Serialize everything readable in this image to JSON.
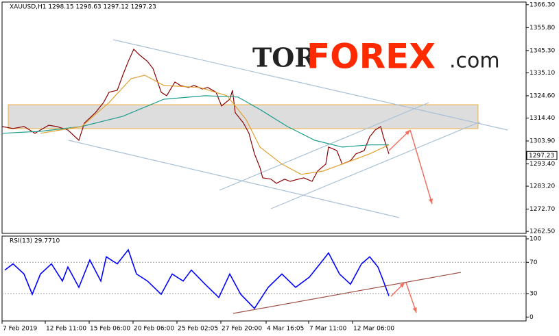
{
  "chart_data": [
    {
      "type": "line",
      "title": "XAUUSD,H1  1298.15 1298.63 1297.12 1297.23",
      "watermark": {
        "tor": "TOR",
        "forex": "FOREX",
        "com": ".com"
      },
      "last_price": {
        "value": 1297.23,
        "label": "1297.23"
      },
      "xlim": [
        0,
        191
      ],
      "xticks": [
        {
          "value": 0,
          "label": "7 Feb 2019"
        },
        {
          "value": 15.75,
          "label": "12 Feb 11:00"
        },
        {
          "value": 31.75,
          "label": "15 Feb 06:00"
        },
        {
          "value": 47.75,
          "label": "20 Feb 06:00"
        },
        {
          "value": 63.75,
          "label": "25 Feb 02:05"
        },
        {
          "value": 79.75,
          "label": "27 Feb 20:00"
        },
        {
          "value": 96.25,
          "label": "4 Mar 16:05"
        },
        {
          "value": 111.75,
          "label": "7 Mar 11:00"
        },
        {
          "value": 127.75,
          "label": "12 Mar 06:00"
        }
      ],
      "ylim": [
        1261.6,
        1367.5
      ],
      "yticks": [
        {
          "value": 1262.5,
          "label": "1262.50"
        },
        {
          "value": 1272.7,
          "label": "1272.70"
        },
        {
          "value": 1283.2,
          "label": "1283.20"
        },
        {
          "value": 1293.4,
          "label": "1293.40"
        },
        {
          "value": 1303.9,
          "label": "1303.90"
        },
        {
          "value": 1314.4,
          "label": "1314.40"
        },
        {
          "value": 1324.6,
          "label": "1324.60"
        },
        {
          "value": 1335.1,
          "label": "1335.10"
        },
        {
          "value": 1345.3,
          "label": "1345.30"
        },
        {
          "value": 1355.8,
          "label": "1355.80"
        },
        {
          "value": 1366.3,
          "label": "1366.30"
        }
      ],
      "series": [
        {
          "color": "#8b0000",
          "x": [
            0,
            4,
            8,
            12,
            14,
            17,
            20,
            24,
            28,
            30,
            34,
            37,
            39,
            42,
            44,
            46,
            48,
            50,
            53,
            55,
            58,
            60,
            63,
            65,
            68,
            70,
            73,
            75,
            78,
            80,
            83,
            84,
            85,
            88,
            90,
            92,
            94,
            95,
            98,
            100,
            103,
            105,
            108,
            110,
            113,
            115,
            118,
            119,
            122,
            124,
            127,
            129,
            132,
            134,
            136,
            138,
            139,
            141
          ],
          "values": [
            1310.5,
            1309.6,
            1310.5,
            1307.4,
            1308.9,
            1311.1,
            1310.5,
            1308.9,
            1304.2,
            1312.1,
            1316.8,
            1321.5,
            1326.2,
            1327.1,
            1334.0,
            1340.3,
            1345.9,
            1343.4,
            1340.3,
            1337.1,
            1326.2,
            1324.6,
            1330.9,
            1329.3,
            1328.4,
            1329.3,
            1327.7,
            1328.4,
            1326.2,
            1319.9,
            1323.0,
            1327.1,
            1316.8,
            1312.1,
            1307.4,
            1298.0,
            1291.7,
            1287.0,
            1286.4,
            1284.5,
            1286.4,
            1285.4,
            1286.4,
            1287.0,
            1285.4,
            1290.1,
            1293.3,
            1301.1,
            1299.5,
            1293.3,
            1294.9,
            1298.0,
            1299.5,
            1305.8,
            1308.9,
            1310.5,
            1305.8,
            1298.0
          ]
        },
        {
          "color": "#1a9c8c",
          "x": [
            0,
            14,
            29,
            44,
            59,
            74,
            86,
            94,
            104,
            114,
            124,
            134,
            141
          ],
          "values": [
            1307.4,
            1308.3,
            1310.5,
            1315.2,
            1323.0,
            1324.6,
            1324.0,
            1318.3,
            1310.5,
            1304.2,
            1301.1,
            1302.1,
            1302.1
          ]
        },
        {
          "color": "#e0a030",
          "x": [
            14,
            29,
            39,
            47,
            52,
            59,
            72,
            82,
            89,
            94,
            102,
            109,
            117,
            124,
            134,
            141
          ],
          "values": [
            1307.4,
            1310.5,
            1321.5,
            1332.4,
            1334.0,
            1329.3,
            1328.4,
            1324.6,
            1313.6,
            1301.1,
            1293.3,
            1288.6,
            1290.1,
            1293.3,
            1298.0,
            1302.1
          ]
        }
      ]
    },
    {
      "type": "line",
      "title": "RSI(13) 29.7710",
      "xlim": [
        0,
        191
      ],
      "ylim": [
        -5,
        103.5
      ],
      "yticks": [
        0,
        30,
        70,
        100
      ],
      "series": [
        {
          "color": "#0000ff",
          "x": [
            1,
            4,
            8,
            11,
            14,
            18,
            22,
            24,
            28,
            32,
            36,
            38,
            42,
            46,
            49,
            53,
            58,
            62,
            66,
            69,
            74,
            79,
            83,
            87,
            92,
            97,
            102,
            107,
            112,
            117,
            119,
            123,
            127,
            131,
            134,
            137,
            139,
            141
          ],
          "values": [
            60,
            68,
            55,
            29,
            55,
            68,
            46,
            64,
            38,
            73,
            46,
            77,
            68,
            86,
            55,
            46,
            29,
            55,
            46,
            60,
            42,
            25,
            55,
            29,
            11,
            38,
            55,
            38,
            51,
            73,
            82,
            55,
            42,
            68,
            77,
            64,
            46,
            27
          ]
        }
      ]
    }
  ]
}
